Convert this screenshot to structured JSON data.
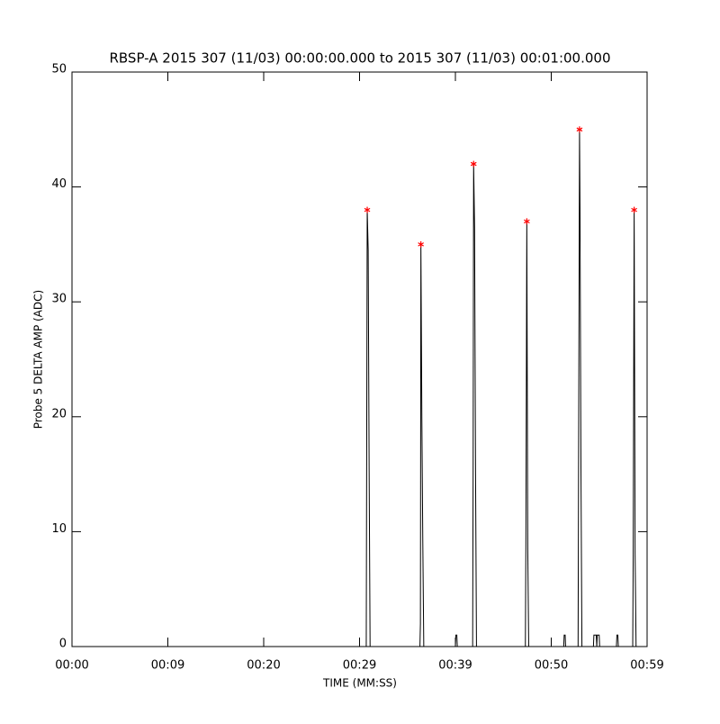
{
  "chart_data": {
    "type": "line",
    "title": "RBSP-A 2015 307 (11/03) 00:00:00.000 to 2015 307 (11/03) 00:01:00.000",
    "x_label": "TIME (MM:SS)",
    "y_label": "Probe 5 DELTA AMP (ADC)",
    "xlim": [
      0,
      60
    ],
    "ylim": [
      0,
      50
    ],
    "xticks": [
      {
        "value": 0,
        "label": "00:00"
      },
      {
        "value": 10,
        "label": "00:09"
      },
      {
        "value": 20,
        "label": "00:20"
      },
      {
        "value": 30,
        "label": "00:29"
      },
      {
        "value": 40,
        "label": "00:39"
      },
      {
        "value": 50,
        "label": "00:50"
      },
      {
        "value": 60,
        "label": "00:59"
      }
    ],
    "yticks": [
      0,
      10,
      20,
      30,
      40,
      50
    ],
    "series": [
      {
        "color": "#000000",
        "marker": "none",
        "x": [
          0,
          30.7,
          30.8,
          30.9,
          31.0,
          31.1,
          36.3,
          36.35,
          36.4,
          36.5,
          36.6,
          36.7,
          40.0,
          40.05,
          40.15,
          40.2,
          41.8,
          41.85,
          41.9,
          42.0,
          42.1,
          42.2,
          47.3,
          47.35,
          47.4,
          47.45,
          47.55,
          47.65,
          51.3,
          51.35,
          51.45,
          51.5,
          52.8,
          52.85,
          52.95,
          53.0,
          53.1,
          53.2,
          54.4,
          54.45,
          54.7,
          54.75,
          54.8,
          55.0,
          55.05,
          56.8,
          56.85,
          56.95,
          57.0,
          58.5,
          58.55,
          58.6,
          58.65,
          58.75,
          58.85,
          60
        ],
        "values": [
          0,
          0,
          38,
          34.5,
          15.5,
          0,
          0,
          2,
          35,
          20,
          9,
          0,
          0,
          1,
          1,
          0,
          0,
          15.5,
          42,
          36.5,
          15.5,
          0,
          0,
          8.5,
          22,
          37,
          8.5,
          0,
          0,
          1,
          1,
          0,
          0,
          15.5,
          45,
          38,
          15.5,
          0,
          0,
          1,
          1,
          0,
          1,
          1,
          0,
          0,
          1,
          1,
          0,
          0,
          8,
          23,
          38,
          8,
          0,
          0
        ]
      },
      {
        "color": "#ff0000",
        "marker": "*",
        "x": [
          30.8,
          36.4,
          41.9,
          47.45,
          52.95,
          58.65
        ],
        "values": [
          38,
          35,
          42,
          37,
          45,
          38
        ]
      }
    ]
  }
}
